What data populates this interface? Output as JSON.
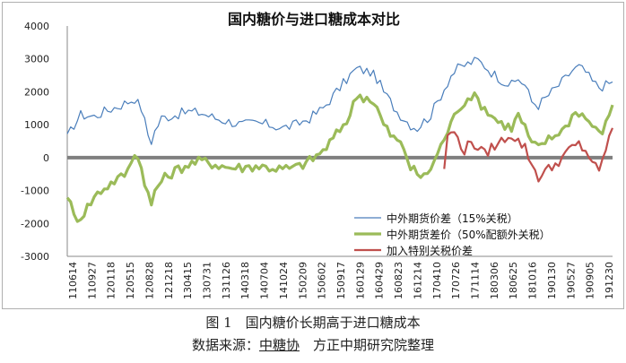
{
  "chart_data": {
    "type": "line",
    "title": "国内糖价与进口糖成本对比",
    "xlabel": "",
    "ylabel": "",
    "ylim": [
      -3000,
      4000
    ],
    "yticks": [
      4000,
      3000,
      2000,
      1000,
      0,
      -1000,
      -2000,
      -3000
    ],
    "x_tick_labels": [
      "110614",
      "110927",
      "120118",
      "120515",
      "120828",
      "121218",
      "130415",
      "130731",
      "131126",
      "140318",
      "140704",
      "141024",
      "150209",
      "150602",
      "150917",
      "160129",
      "160429",
      "160823",
      "161214",
      "170410",
      "170726",
      "171114",
      "180306",
      "180625",
      "181016",
      "190130",
      "190527",
      "190905",
      "191230"
    ],
    "legend_position": "right-middle",
    "series": [
      {
        "name": "中外期货价差（15%关税）",
        "color": "#4a7ebb",
        "anchors": [
          [
            0,
            600
          ],
          [
            2,
            1000
          ],
          [
            4,
            1300
          ],
          [
            8,
            1250
          ],
          [
            11,
            1400
          ],
          [
            16,
            1600
          ],
          [
            20,
            1800
          ],
          [
            22,
            1500
          ],
          [
            24,
            700
          ],
          [
            25,
            500
          ],
          [
            26,
            800
          ],
          [
            28,
            1200
          ],
          [
            32,
            1300
          ],
          [
            36,
            1400
          ],
          [
            40,
            1350
          ],
          [
            44,
            1200
          ],
          [
            48,
            1100
          ],
          [
            52,
            1000
          ],
          [
            56,
            1050
          ],
          [
            60,
            1000
          ],
          [
            64,
            900
          ],
          [
            68,
            1000
          ],
          [
            72,
            1200
          ],
          [
            76,
            1500
          ],
          [
            80,
            2000
          ],
          [
            84,
            2500
          ],
          [
            86,
            2700
          ],
          [
            88,
            2650
          ],
          [
            90,
            2600
          ],
          [
            92,
            2400
          ],
          [
            94,
            2000
          ],
          [
            96,
            1700
          ],
          [
            98,
            1400
          ],
          [
            100,
            1200
          ],
          [
            102,
            1000
          ],
          [
            104,
            900
          ],
          [
            106,
            1100
          ],
          [
            108,
            1300
          ],
          [
            110,
            1700
          ],
          [
            112,
            2100
          ],
          [
            114,
            2500
          ],
          [
            116,
            2700
          ],
          [
            118,
            2800
          ],
          [
            120,
            2900
          ],
          [
            122,
            2950
          ],
          [
            124,
            2800
          ],
          [
            126,
            2600
          ],
          [
            128,
            2450
          ],
          [
            130,
            2300
          ],
          [
            132,
            2200
          ],
          [
            134,
            2400
          ],
          [
            136,
            2200
          ],
          [
            138,
            1700
          ],
          [
            140,
            1600
          ],
          [
            142,
            1800
          ],
          [
            144,
            2000
          ],
          [
            146,
            2200
          ],
          [
            148,
            2400
          ],
          [
            150,
            2650
          ],
          [
            152,
            2750
          ],
          [
            154,
            2600
          ],
          [
            156,
            2300
          ],
          [
            158,
            2150
          ],
          [
            160,
            2200
          ],
          [
            162,
            2300
          ]
        ]
      },
      {
        "name": "中外期货差价（50%配额外关税）",
        "color": "#9bbb59",
        "anchors": [
          [
            0,
            -1100
          ],
          [
            2,
            -1800
          ],
          [
            4,
            -1800
          ],
          [
            6,
            -1500
          ],
          [
            8,
            -1200
          ],
          [
            10,
            -1000
          ],
          [
            14,
            -700
          ],
          [
            16,
            -600
          ],
          [
            18,
            -400
          ],
          [
            20,
            200
          ],
          [
            22,
            -300
          ],
          [
            24,
            -1100
          ],
          [
            25,
            -1500
          ],
          [
            26,
            -1000
          ],
          [
            28,
            -700
          ],
          [
            32,
            -400
          ],
          [
            36,
            -200
          ],
          [
            40,
            -100
          ],
          [
            44,
            -200
          ],
          [
            48,
            -300
          ],
          [
            52,
            -300
          ],
          [
            56,
            -250
          ],
          [
            60,
            -300
          ],
          [
            64,
            -350
          ],
          [
            68,
            -300
          ],
          [
            72,
            -100
          ],
          [
            76,
            200
          ],
          [
            80,
            700
          ],
          [
            84,
            1300
          ],
          [
            86,
            1900
          ],
          [
            88,
            1850
          ],
          [
            90,
            1800
          ],
          [
            92,
            1500
          ],
          [
            94,
            1000
          ],
          [
            96,
            700
          ],
          [
            98,
            500
          ],
          [
            100,
            300
          ],
          [
            102,
            -300
          ],
          [
            104,
            -500
          ],
          [
            106,
            -600
          ],
          [
            108,
            -300
          ],
          [
            110,
            100
          ],
          [
            112,
            600
          ],
          [
            114,
            1000
          ],
          [
            116,
            1500
          ],
          [
            118,
            1700
          ],
          [
            120,
            1900
          ],
          [
            122,
            1750
          ],
          [
            124,
            1500
          ],
          [
            126,
            1300
          ],
          [
            128,
            1100
          ],
          [
            130,
            1000
          ],
          [
            132,
            900
          ],
          [
            134,
            1300
          ],
          [
            136,
            900
          ],
          [
            138,
            400
          ],
          [
            140,
            300
          ],
          [
            142,
            500
          ],
          [
            144,
            600
          ],
          [
            146,
            800
          ],
          [
            148,
            900
          ],
          [
            150,
            1300
          ],
          [
            152,
            1400
          ],
          [
            154,
            1200
          ],
          [
            156,
            1000
          ],
          [
            158,
            700
          ],
          [
            160,
            1000
          ],
          [
            162,
            1600
          ]
        ]
      },
      {
        "name": "加入特别关税价差",
        "color": "#c0504d",
        "anchors": [
          [
            112,
            -300
          ],
          [
            113,
            600
          ],
          [
            114,
            800
          ],
          [
            116,
            600
          ],
          [
            118,
            200
          ],
          [
            120,
            500
          ],
          [
            122,
            300
          ],
          [
            124,
            100
          ],
          [
            126,
            300
          ],
          [
            128,
            400
          ],
          [
            130,
            600
          ],
          [
            132,
            700
          ],
          [
            134,
            500
          ],
          [
            136,
            300
          ],
          [
            138,
            -200
          ],
          [
            140,
            -600
          ],
          [
            142,
            -400
          ],
          [
            144,
            -300
          ],
          [
            146,
            -100
          ],
          [
            148,
            100
          ],
          [
            150,
            300
          ],
          [
            152,
            400
          ],
          [
            154,
            200
          ],
          [
            156,
            -100
          ],
          [
            158,
            -500
          ],
          [
            160,
            300
          ],
          [
            162,
            900
          ]
        ]
      }
    ]
  },
  "caption": {
    "figure": "图 1　国内糖价长期高于进口糖成本",
    "source_prefix": "数据来源：",
    "source_org1": "中糖协",
    "source_sep": "　",
    "source_org2": "方正中期研究院整理"
  }
}
